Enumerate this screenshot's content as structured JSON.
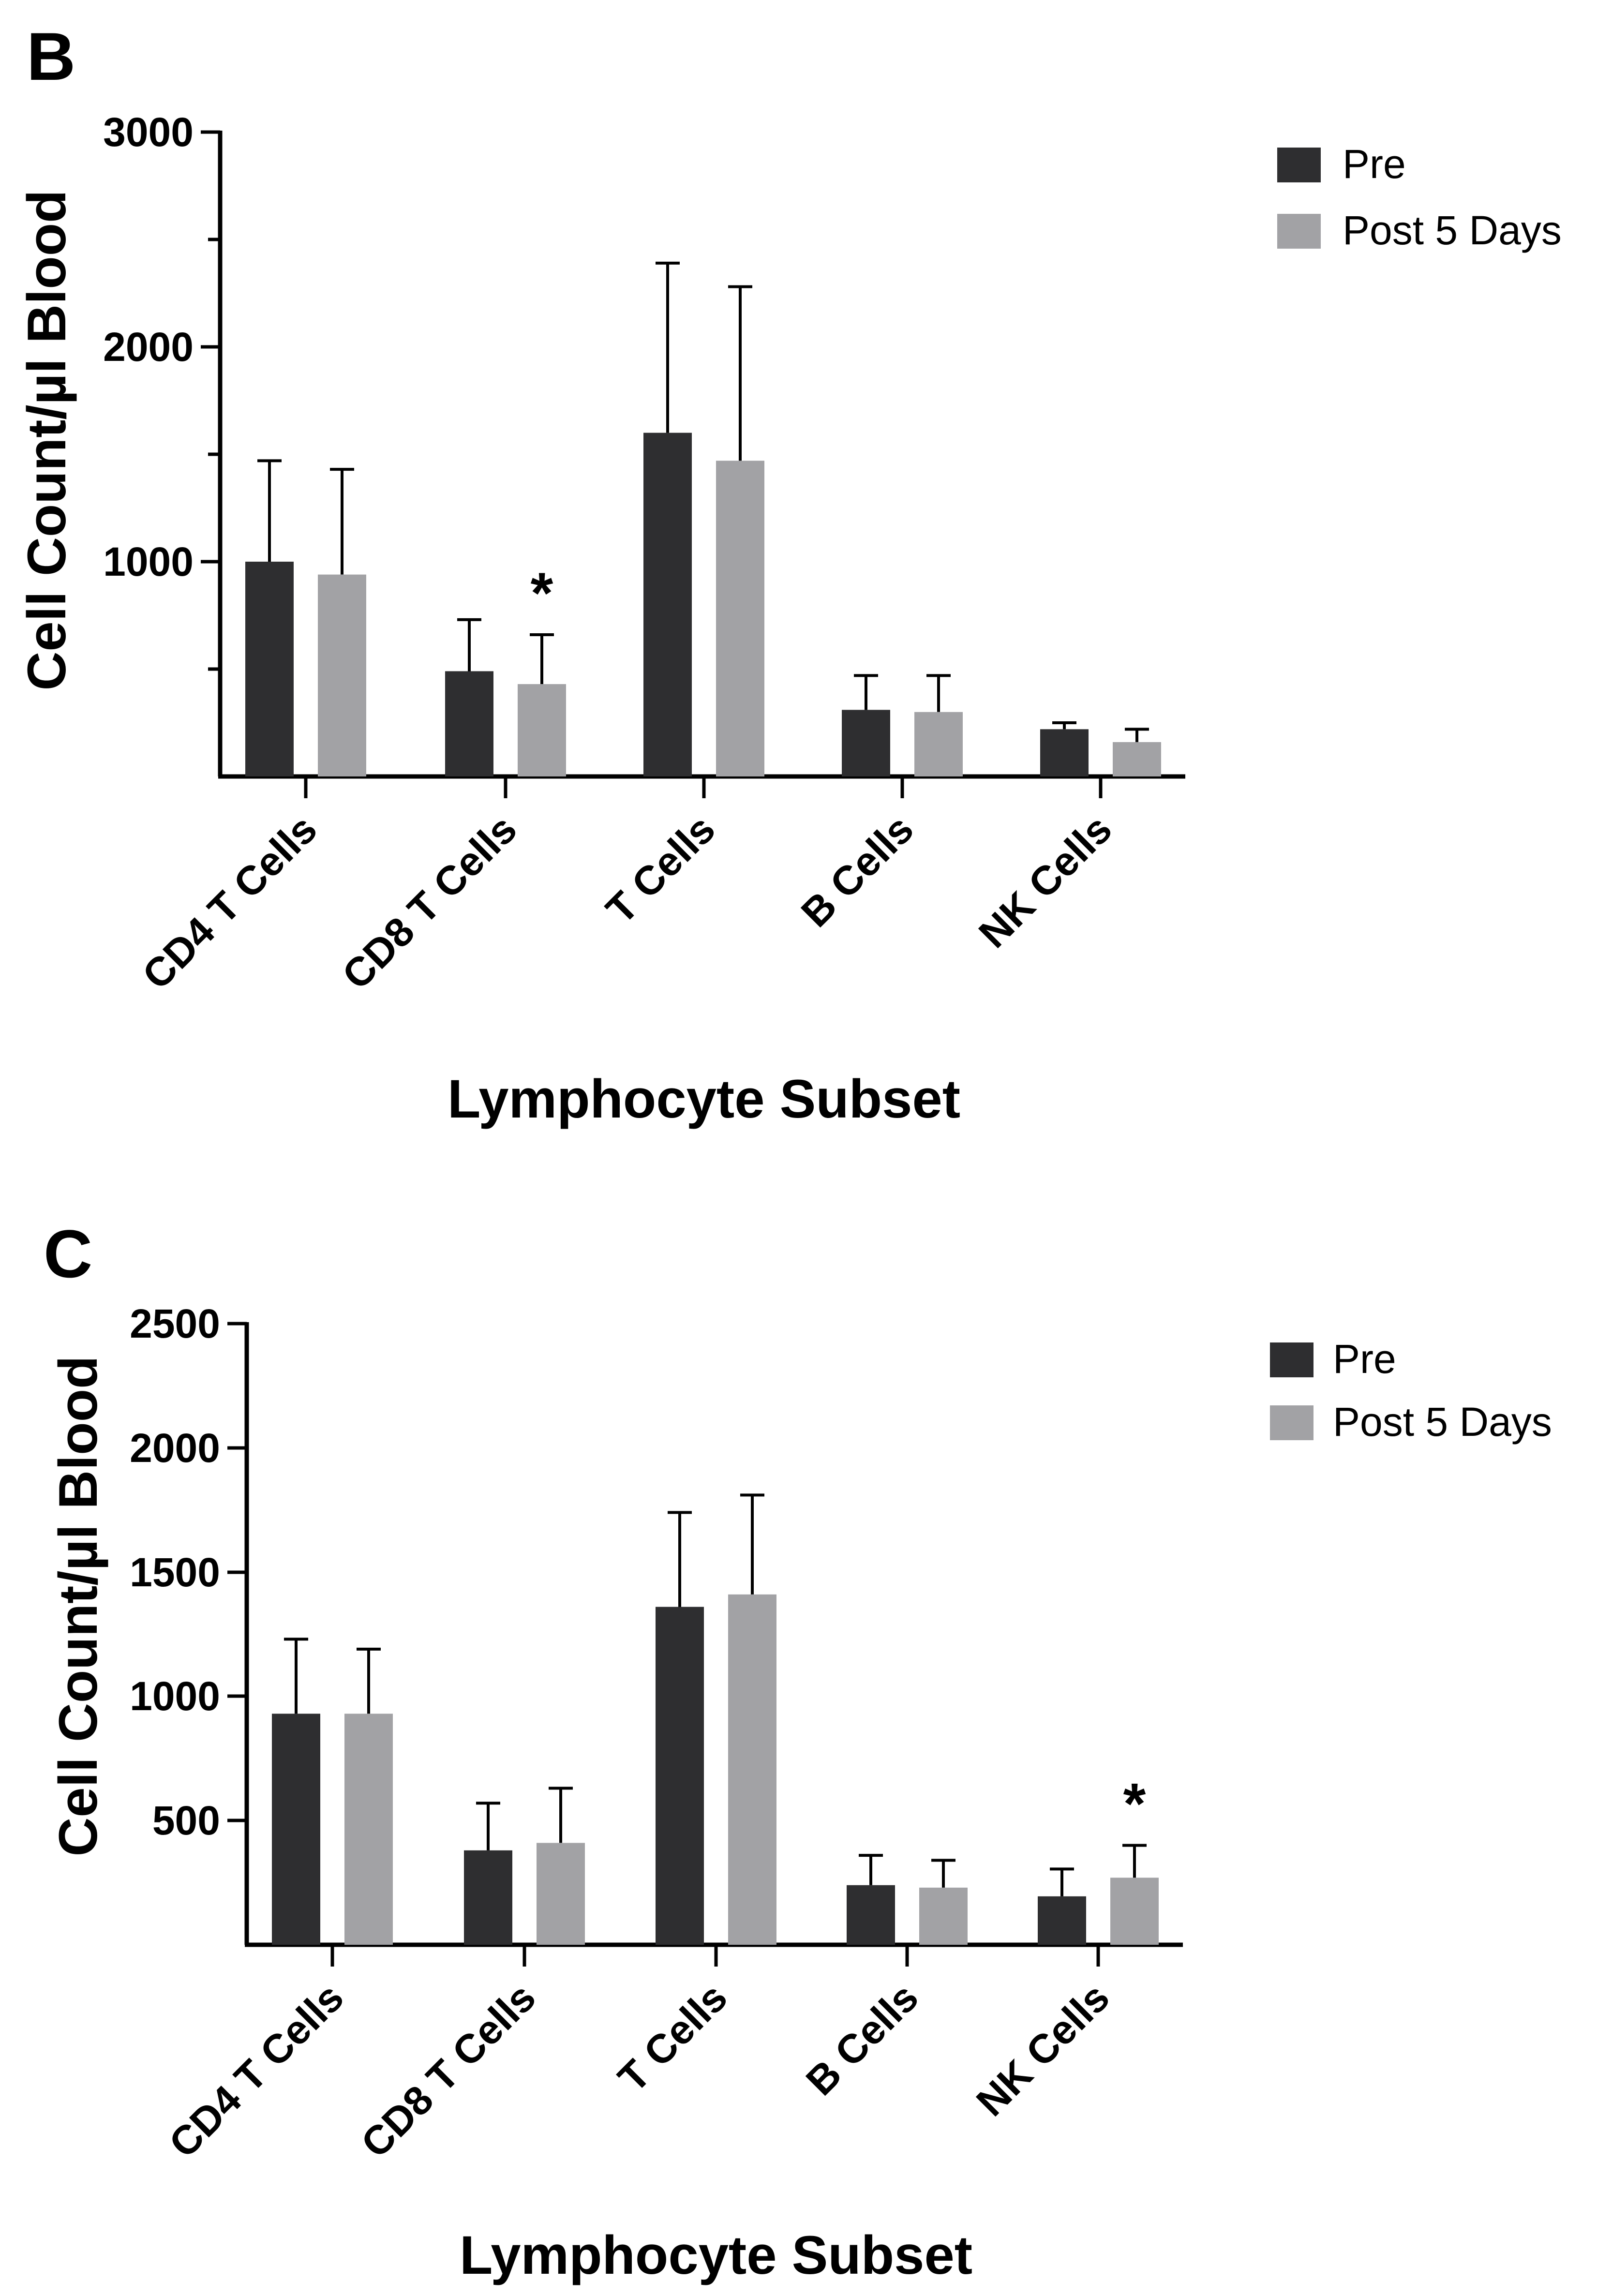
{
  "chart_data": [
    {
      "panel_label": "B",
      "type": "bar",
      "xlabel": "Lymphocyte Subset",
      "ylabel": "Cell Count/µl Blood",
      "ylim": [
        0,
        3000
      ],
      "yticks": [
        1000,
        2000,
        3000
      ],
      "categories": [
        "CD4 T Cells",
        "CD8 T Cells",
        "T Cells",
        "B Cells",
        "NK Cells"
      ],
      "series": [
        {
          "name": "Pre",
          "color": "#2e2e30",
          "values": [
            1000,
            490,
            1600,
            310,
            220
          ],
          "errors": [
            470,
            240,
            790,
            160,
            30
          ]
        },
        {
          "name": "Post 5 Days",
          "color": "#a2a2a5",
          "values": [
            940,
            430,
            1470,
            300,
            160
          ],
          "errors": [
            490,
            230,
            810,
            170,
            60
          ]
        }
      ],
      "annotations": [
        {
          "text": "*",
          "category": "CD8 T Cells",
          "series": "Post 5 Days"
        }
      ]
    },
    {
      "panel_label": "C",
      "type": "bar",
      "xlabel": "Lymphocyte Subset",
      "ylabel": "Cell Count/µl Blood",
      "ylim": [
        0,
        2500
      ],
      "yticks": [
        500,
        1000,
        1500,
        2000,
        2500
      ],
      "categories": [
        "CD4 T Cells",
        "CD8 T Cells",
        "T Cells",
        "B Cells",
        "NK Cells"
      ],
      "series": [
        {
          "name": "Pre",
          "color": "#2e2e30",
          "values": [
            930,
            380,
            1360,
            240,
            195
          ],
          "errors": [
            300,
            190,
            380,
            120,
            110
          ]
        },
        {
          "name": "Post 5 Days",
          "color": "#a2a2a5",
          "values": [
            930,
            410,
            1410,
            230,
            270
          ],
          "errors": [
            260,
            220,
            400,
            110,
            130
          ]
        }
      ],
      "annotations": [
        {
          "text": "*",
          "category": "NK Cells",
          "series": "Post 5 Days"
        }
      ]
    }
  ]
}
